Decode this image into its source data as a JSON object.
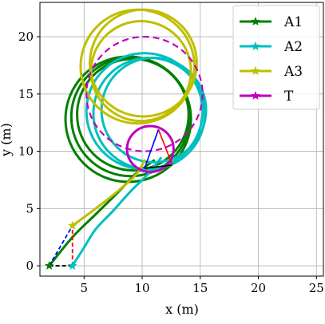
{
  "chart_data": {
    "type": "line",
    "title": "",
    "xlabel": "x (m)",
    "ylabel": "y (m)",
    "xlim": [
      1.2,
      25.6
    ],
    "ylim": [
      -0.9,
      23
    ],
    "xticks": [
      5,
      10,
      15,
      20,
      25
    ],
    "yticks": [
      0,
      5,
      10,
      15,
      20
    ],
    "xtick_labels": [
      "5",
      "10",
      "15",
      "20",
      "25"
    ],
    "ytick_labels": [
      "0",
      "5",
      "10",
      "15",
      "20"
    ],
    "grid": true,
    "legend_position": "top-right",
    "colors": {
      "A1": "#008000",
      "A2": "#00bfbf",
      "A3": "#bfbf00",
      "T": "#bf00bf",
      "triangle_blue": "#0000ff",
      "triangle_red": "#ff0000",
      "triangle_black": "#000000",
      "grid": "#b0b0b0",
      "legend_frame": "#cccccc"
    },
    "series": [
      {
        "name": "A1",
        "color": "#008000",
        "start": [
          2,
          0
        ],
        "approach": [
          [
            2,
            0
          ],
          [
            4,
            2.5
          ],
          [
            6,
            4.5
          ],
          [
            8,
            6.5
          ],
          [
            9.4,
            8
          ],
          [
            10.2,
            8.6
          ],
          [
            11,
            9.2
          ]
        ],
        "loops": [
          {
            "cx": 8.8,
            "cy": 12.8,
            "r": 5.4
          },
          {
            "cx": 9.0,
            "cy": 13.0,
            "r": 5.1
          },
          {
            "cx": 9.2,
            "cy": 13.2,
            "r": 4.8
          }
        ]
      },
      {
        "name": "A2",
        "color": "#00bfbf",
        "start": [
          4,
          0
        ],
        "approach": [
          [
            4,
            0
          ],
          [
            5,
            1.6
          ],
          [
            6,
            3.2
          ],
          [
            7.5,
            4.8
          ],
          [
            9,
            6.5
          ],
          [
            10.5,
            8
          ],
          [
            11.6,
            9.4
          ]
        ],
        "loops": [
          {
            "cx": 10.2,
            "cy": 13.5,
            "r": 5.0
          },
          {
            "cx": 10.6,
            "cy": 13.3,
            "r": 4.8
          },
          {
            "cx": 11.0,
            "cy": 13.6,
            "r": 4.5
          }
        ]
      },
      {
        "name": "A3",
        "color": "#bfbf00",
        "start": [
          4,
          3.5
        ],
        "approach": [
          [
            4,
            3.5
          ],
          [
            6,
            5
          ],
          [
            8,
            6.6
          ],
          [
            9.5,
            8
          ],
          [
            10.2,
            9.2
          ]
        ],
        "loops": [
          {
            "cx": 9.6,
            "cy": 17.4,
            "r": 4.9
          },
          {
            "cx": 10.1,
            "cy": 17.7,
            "r": 4.6
          },
          {
            "cx": 9.9,
            "cy": 17.0,
            "r": 4.3
          }
        ]
      },
      {
        "name": "T",
        "color": "#bf00bf",
        "target_circle": {
          "cx": 10.7,
          "cy": 10.2,
          "r": 2.0
        },
        "reference_circle": {
          "cx": 10.2,
          "cy": 15.0,
          "r": 5.0
        }
      }
    ],
    "triangles": {
      "initial": {
        "A1": [
          2,
          0
        ],
        "A2": [
          4,
          0
        ],
        "A3": [
          4,
          3.5
        ]
      },
      "final": {
        "A1": [
          10.2,
          8.5
        ],
        "A2": [
          12.6,
          8.8
        ],
        "A3": [
          11.4,
          11.9
        ]
      }
    }
  }
}
